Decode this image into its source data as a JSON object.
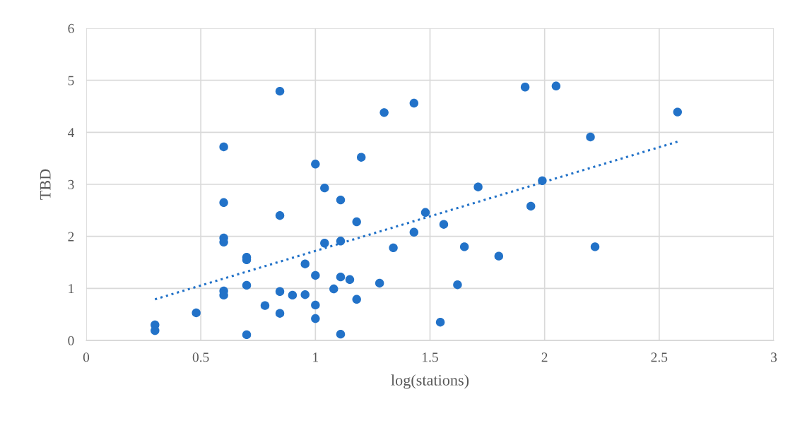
{
  "chart_data": {
    "type": "scatter",
    "xlabel": "log(stations)",
    "ylabel": "TBD",
    "xlim": [
      0,
      3
    ],
    "xticks": [
      0,
      0.5,
      1,
      1.5,
      2,
      2.5,
      3
    ],
    "ylim": [
      0,
      6
    ],
    "yticks": [
      0,
      1,
      2,
      3,
      4,
      5,
      6
    ],
    "grid": true,
    "series": [
      {
        "marker": "circle",
        "color": "#2272c8",
        "x": [
          0.3,
          0.3,
          0.48,
          0.6,
          0.6,
          0.6,
          0.6,
          0.6,
          0.6,
          0.7,
          0.7,
          0.7,
          0.7,
          0.78,
          0.845,
          0.845,
          0.845,
          0.845,
          0.9,
          0.955,
          0.955,
          1.0,
          1.0,
          1.0,
          1.0,
          1.04,
          1.04,
          1.08,
          1.11,
          1.11,
          1.11,
          1.11,
          1.15,
          1.18,
          1.18,
          1.2,
          1.28,
          1.3,
          1.34,
          1.43,
          1.43,
          1.48,
          1.545,
          1.56,
          1.62,
          1.65,
          1.71,
          1.8,
          1.915,
          1.94,
          1.99,
          2.05,
          2.2,
          2.22,
          2.58
        ],
        "values": [
          0.3,
          0.19,
          0.53,
          3.72,
          2.65,
          1.97,
          1.89,
          0.95,
          0.87,
          1.6,
          1.55,
          1.06,
          0.11,
          0.67,
          4.79,
          2.4,
          0.94,
          0.52,
          0.87,
          1.47,
          0.88,
          3.39,
          1.25,
          0.68,
          0.42,
          2.93,
          1.87,
          0.99,
          2.7,
          1.91,
          1.22,
          0.12,
          1.17,
          2.28,
          0.79,
          3.52,
          1.1,
          4.38,
          1.78,
          4.56,
          2.08,
          2.46,
          0.35,
          2.23,
          1.07,
          1.8,
          2.95,
          1.62,
          4.87,
          2.58,
          3.07,
          4.89,
          3.91,
          1.8,
          4.39
        ]
      },
      {
        "type": "line",
        "color": "#2272c8",
        "line_style": "dotted",
        "x": [
          0.3,
          2.58
        ],
        "values": [
          0.79,
          3.82
        ]
      }
    ]
  }
}
